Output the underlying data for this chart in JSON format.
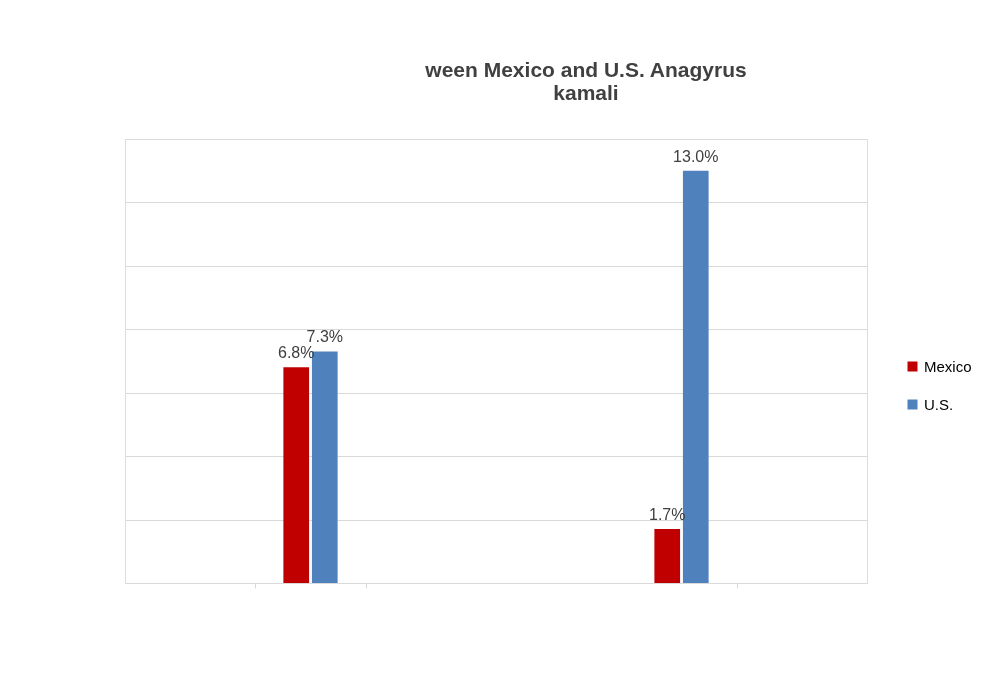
{
  "chart_data": {
    "type": "bar",
    "title": [
      "ween Mexico and U.S. Anagyrus",
      "kamali"
    ],
    "categories": [
      null,
      null
    ],
    "series": [
      {
        "name": "Mexico",
        "color": "#c00000",
        "values": [
          6.8,
          1.7
        ],
        "value_labels": [
          "6.8%",
          "1.7%"
        ]
      },
      {
        "name": "U.S.",
        "color": "#4f81bd",
        "values": [
          7.3,
          13.0
        ],
        "value_labels": [
          "7.3%",
          "13.0%"
        ]
      }
    ],
    "ylim": [
      0,
      14
    ],
    "yticks": [
      {
        "value": 0,
        "label": null
      },
      {
        "value": 2,
        "label": null
      },
      {
        "value": 4,
        "label": null
      },
      {
        "value": 6,
        "label": null
      },
      {
        "value": 8,
        "label": null
      },
      {
        "value": 10,
        "label": null
      },
      {
        "value": 12,
        "label": null
      },
      {
        "value": 14,
        "label": null
      }
    ],
    "grid": "y",
    "legend": "right"
  }
}
